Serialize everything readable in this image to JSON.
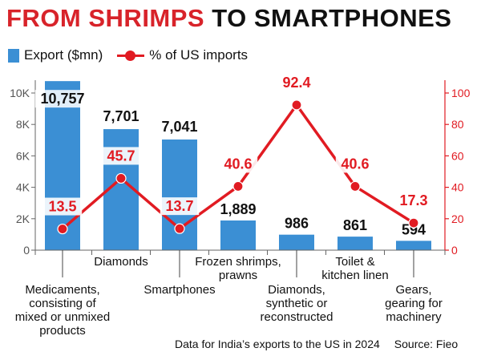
{
  "title": {
    "part1": "FROM SHRIMPS",
    "part2": "TO SMARTPHONES"
  },
  "colors": {
    "bar": "#3b8fd4",
    "line": "#e11b22",
    "title_red": "#d8232a",
    "axis": "#666666"
  },
  "legend": {
    "bar_label": "Export ($mn)",
    "line_label": "% of US imports"
  },
  "chart_data": {
    "type": "bar+line",
    "categories": [
      "Medicaments, consisting of mixed or unmixed products",
      "Diamonds",
      "Smartphones",
      "Frozen shrimps, prawns",
      "Diamonds, synthetic or reconstructed",
      "Toilet & kitchen linen",
      "Gears, gearing for machinery"
    ],
    "category_label_lines": [
      [
        "Medicaments,",
        "consisting of",
        "mixed or unmixed",
        "products"
      ],
      [
        "Diamonds"
      ],
      [
        "Smartphones"
      ],
      [
        "Frozen shrimps,",
        "prawns"
      ],
      [
        "Diamonds,",
        "synthetic or",
        "reconstructed"
      ],
      [
        "Toilet &",
        "kitchen linen"
      ],
      [
        "Gears,",
        "gearing for",
        "machinery"
      ]
    ],
    "series": [
      {
        "name": "Export ($mn)",
        "type": "bar",
        "axis": "left",
        "values": [
          10757,
          7701,
          7041,
          1889,
          986,
          861,
          594
        ],
        "labels": [
          "10,757",
          "7,701",
          "7,041",
          "1,889",
          "986",
          "861",
          "594"
        ]
      },
      {
        "name": "% of US imports",
        "type": "line",
        "axis": "right",
        "values": [
          13.5,
          45.7,
          13.7,
          40.6,
          92.4,
          40.6,
          17.3
        ],
        "labels": [
          "13.5",
          "45.7",
          "13.7",
          "40.6",
          "92.4",
          "40.6",
          "17.3"
        ]
      }
    ],
    "left_axis": {
      "ylim": [
        0,
        10000
      ],
      "ticks": [
        "0",
        "2K",
        "4K",
        "6K",
        "8K",
        "10K"
      ]
    },
    "right_axis": {
      "ylim": [
        0,
        100
      ],
      "ticks": [
        "0",
        "20",
        "40",
        "60",
        "80",
        "100"
      ]
    },
    "grid": false,
    "legend_position": "top-left"
  },
  "footer": {
    "note": "Data for India’s exports to the US in 2024",
    "source": "Source: Fieo"
  }
}
